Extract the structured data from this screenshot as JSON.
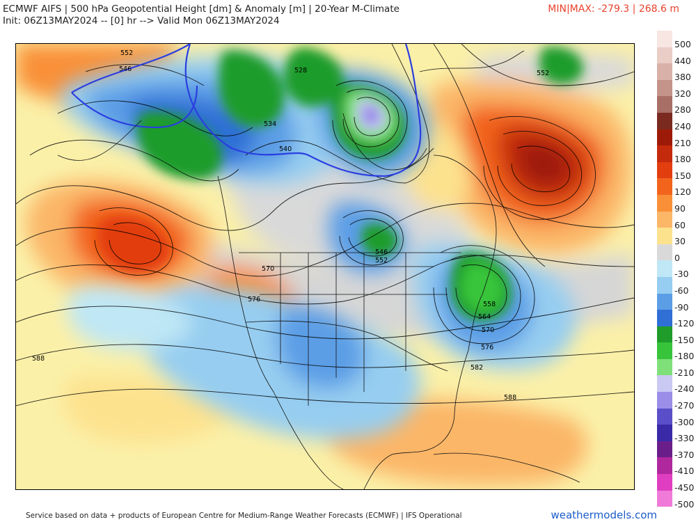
{
  "header": {
    "title_line1": "ECMWF AIFS | 500 hPa Geopotential Height [dm] & Anomaly [m] | 20-Year M-Climate",
    "title_line2": "Init: 06Z13MAY2024 -- [0] hr --> Valid Mon 06Z13MAY2024",
    "minmax": "MIN|MAX: -279.3 | 268.6 m"
  },
  "colorbar": [
    {
      "label": "500",
      "color": "#f7e6e2"
    },
    {
      "label": "440",
      "color": "#e9cdc6"
    },
    {
      "label": "380",
      "color": "#d9b1a8"
    },
    {
      "label": "320",
      "color": "#c49389"
    },
    {
      "label": "280",
      "color": "#a86f66"
    },
    {
      "label": "240",
      "color": "#7a2a1f"
    },
    {
      "label": "210",
      "color": "#9e1a08"
    },
    {
      "label": "180",
      "color": "#c42a0c"
    },
    {
      "label": "150",
      "color": "#e23e10"
    },
    {
      "label": "120",
      "color": "#f2641c"
    },
    {
      "label": "90",
      "color": "#f99038"
    },
    {
      "label": "60",
      "color": "#fbb668"
    },
    {
      "label": "30",
      "color": "#fde28e"
    },
    {
      "label": "0",
      "color": "#d9d9d9"
    },
    {
      "label": "-30",
      "color": "#bfe7f5"
    },
    {
      "label": "-60",
      "color": "#96cdf0"
    },
    {
      "label": "-90",
      "color": "#5c9ee6"
    },
    {
      "label": "-120",
      "color": "#2f6fd6"
    },
    {
      "label": "-150",
      "color": "#1f9c2a"
    },
    {
      "label": "-180",
      "color": "#37c43a"
    },
    {
      "label": "-210",
      "color": "#7fe07a"
    },
    {
      "label": "-240",
      "color": "#c9c9f4"
    },
    {
      "label": "-270",
      "color": "#9a8ee8"
    },
    {
      "label": "-300",
      "color": "#5a4fc8"
    },
    {
      "label": "-330",
      "color": "#3a2aa8"
    },
    {
      "label": "-370",
      "color": "#6a1e8a"
    },
    {
      "label": "-410",
      "color": "#b0289e"
    },
    {
      "label": "-450",
      "color": "#e03ec0"
    },
    {
      "label": "-500",
      "color": "#f07ad8"
    }
  ],
  "contour_labels": [
    {
      "text": "552"
    },
    {
      "text": "546"
    },
    {
      "text": "528"
    },
    {
      "text": "534"
    },
    {
      "text": "540"
    },
    {
      "text": "552"
    },
    {
      "text": "546"
    },
    {
      "text": "552"
    },
    {
      "text": "570"
    },
    {
      "text": "576"
    },
    {
      "text": "588"
    },
    {
      "text": "558"
    },
    {
      "text": "564"
    },
    {
      "text": "570"
    },
    {
      "text": "576"
    },
    {
      "text": "582"
    },
    {
      "text": "588"
    }
  ],
  "footer": {
    "credit": "Service based on data + products of European Centre for Medium-Range Weather Forecasts (ECMWF) | IFS Operational",
    "brand": "weathermodels.com"
  }
}
